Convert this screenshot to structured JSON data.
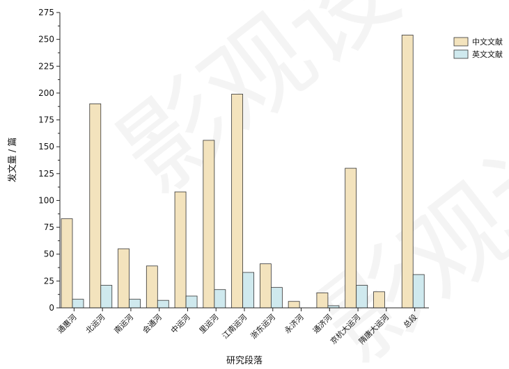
{
  "chart_data": {
    "type": "bar",
    "xlabel": "研究段落",
    "ylabel": "发文量 / 篇",
    "ylim": [
      0,
      275
    ],
    "yticks": [
      "0",
      "25",
      "50",
      "75",
      "100",
      "125",
      "150",
      "175",
      "200",
      "225",
      "250",
      "275"
    ],
    "grid": false,
    "legend_position": "top-right",
    "categories": [
      "通惠河",
      "北运河",
      "南运河",
      "会通河",
      "中运河",
      "里运河",
      "江南运河",
      "浙东运河",
      "永济河",
      "通济河",
      "京杭大运河",
      "隋唐大运河",
      "总段"
    ],
    "series": [
      {
        "name": "中文文献",
        "color": "#f3e3bd",
        "values": [
          83,
          190,
          55,
          39,
          108,
          156,
          199,
          41,
          6,
          14,
          130,
          15,
          254
        ]
      },
      {
        "name": "英文文献",
        "color": "#cfe9ee",
        "values": [
          8,
          21,
          8,
          7,
          11,
          17,
          33,
          19,
          0,
          2,
          21,
          0,
          31
        ]
      }
    ]
  },
  "watermark": {
    "text": "影观设"
  }
}
